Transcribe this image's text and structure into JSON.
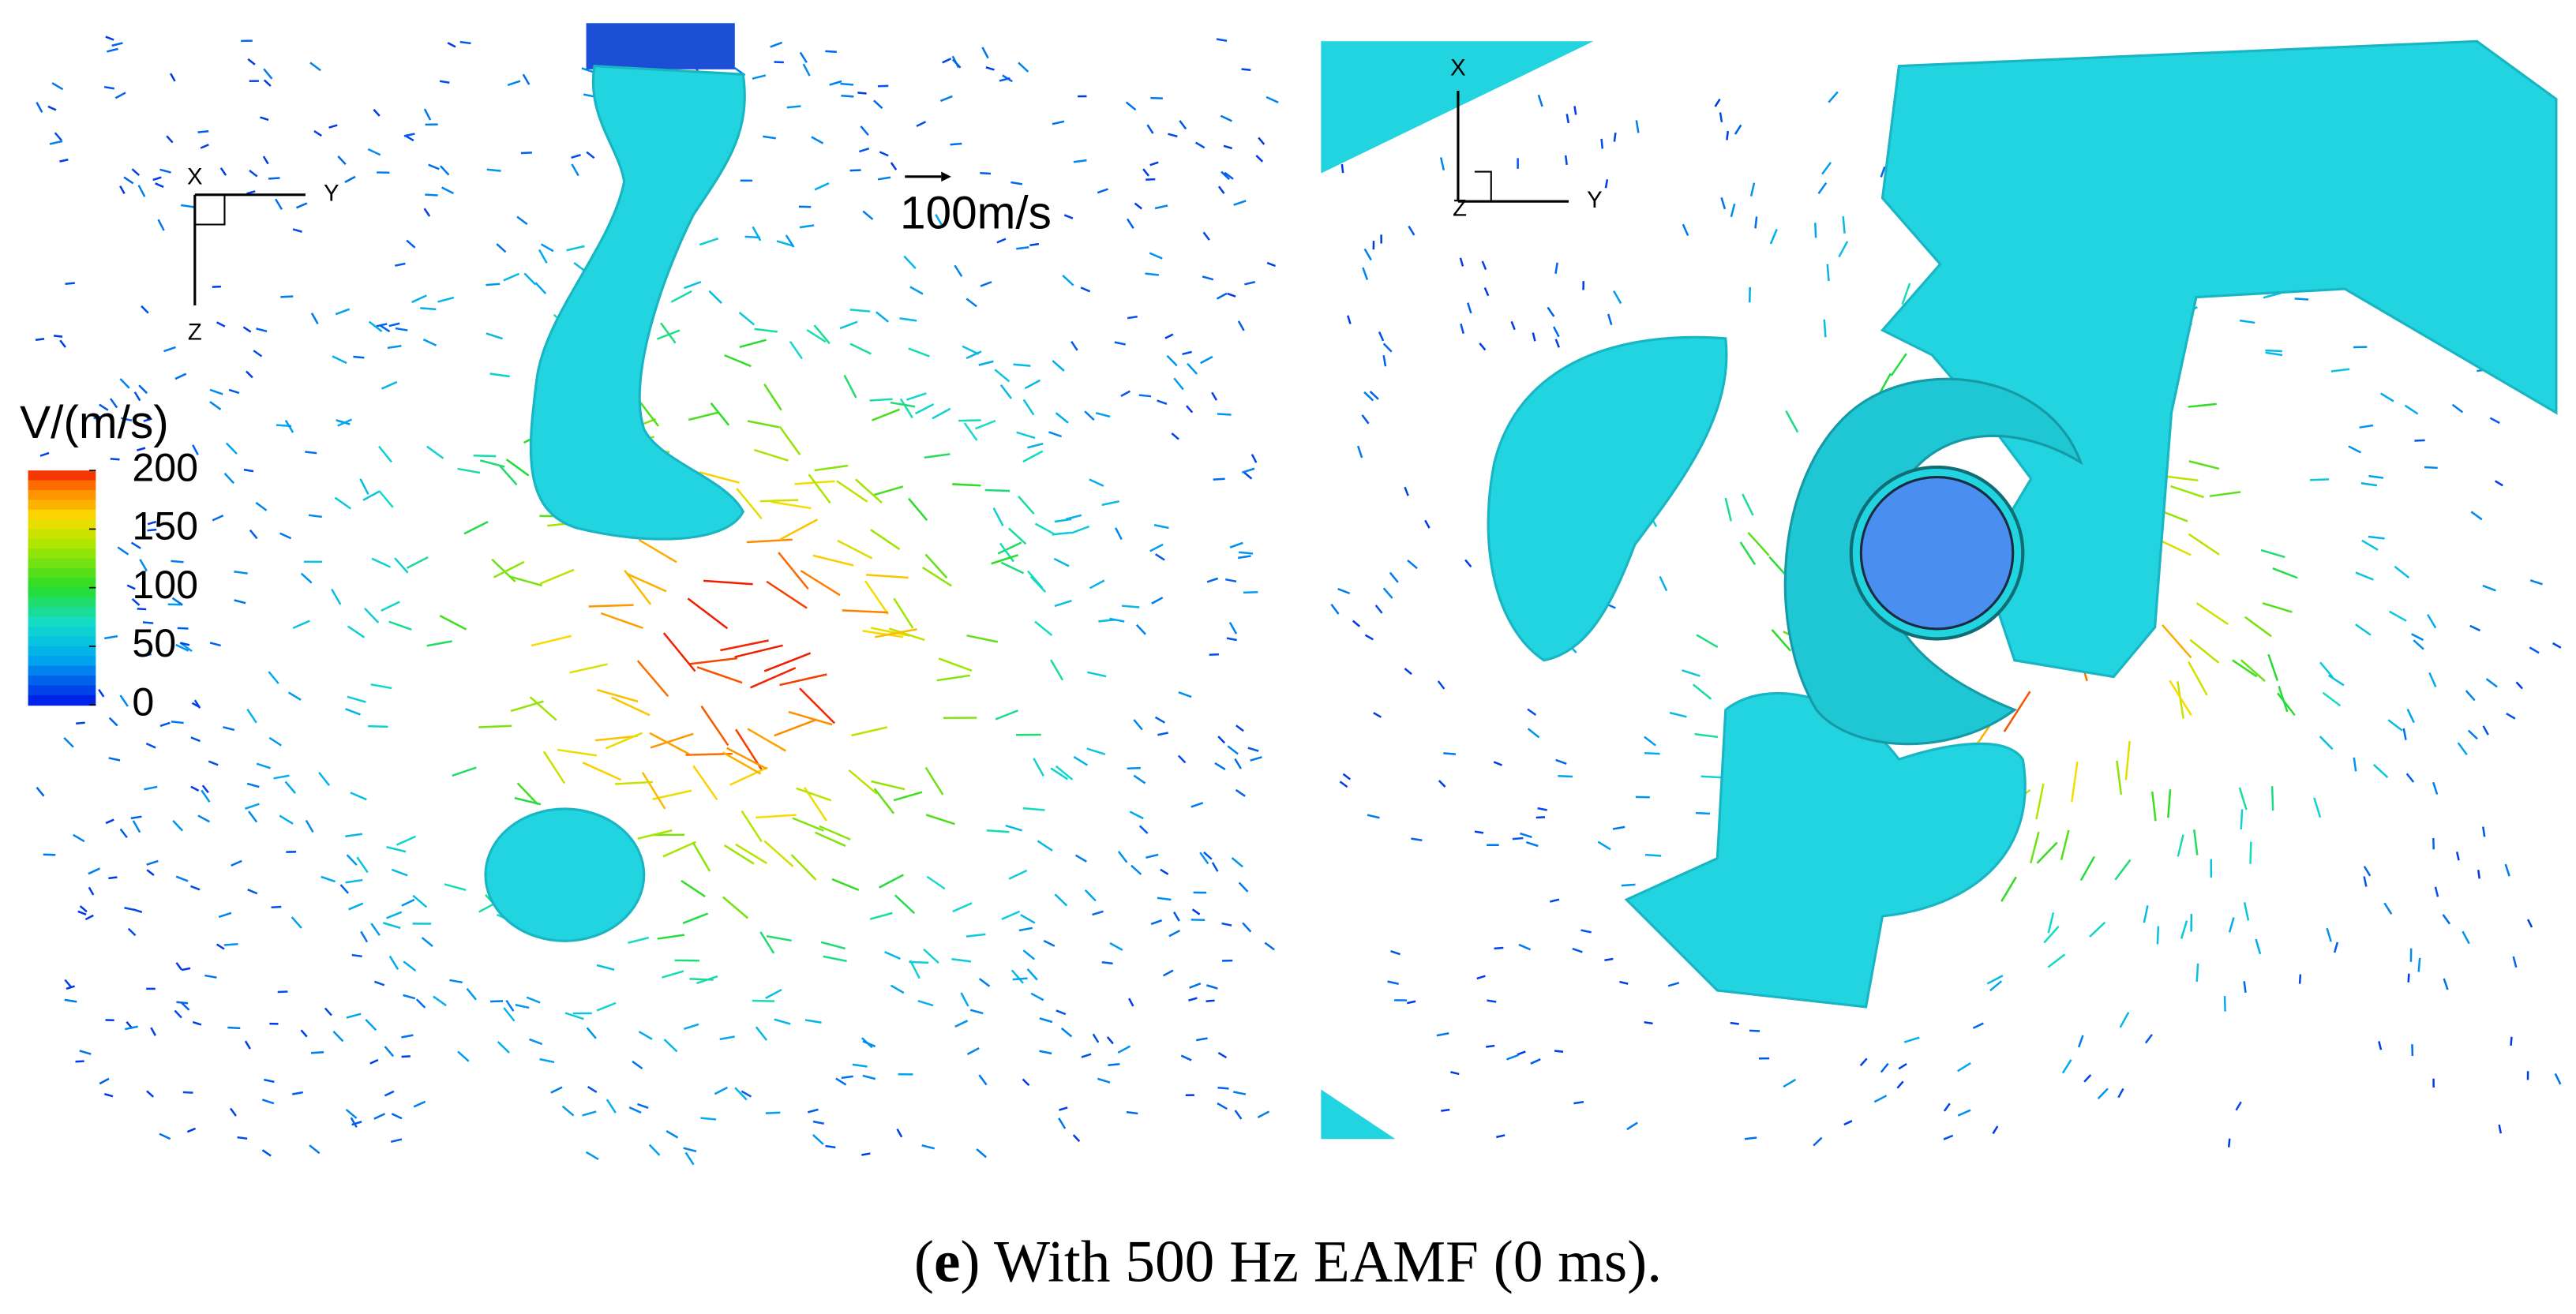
{
  "left_panel": {
    "axes": {
      "x": "X",
      "y": "Y",
      "z": "Z"
    },
    "reference_vector": "100m/s"
  },
  "right_panel": {
    "axes": {
      "x": "X",
      "y": "Y",
      "z": "Z"
    }
  },
  "colorbar": {
    "title": "V/(m/s)",
    "range": [
      0,
      200
    ],
    "ticks": [
      0,
      50,
      100,
      150,
      200
    ]
  },
  "caption": [
    {
      "text": "(",
      "bold": false
    },
    {
      "text": "e",
      "bold": true
    },
    {
      "text": ") With 500 Hz EAMF (0 ms).",
      "bold": false
    }
  ]
}
